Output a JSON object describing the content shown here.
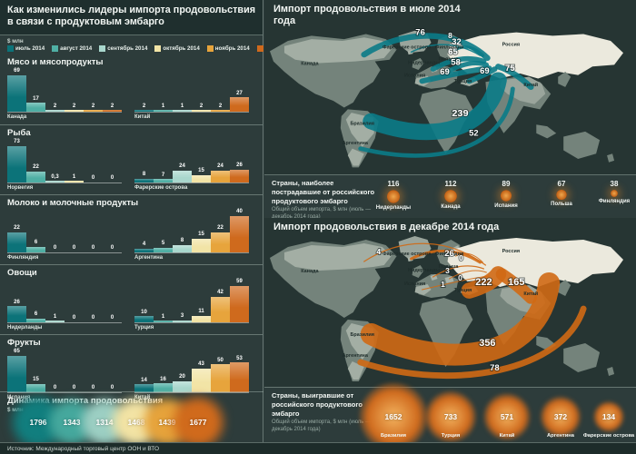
{
  "left": {
    "title": "Как изменились лидеры импорта продовольствия в связи с продуктовым эмбарго",
    "unit": "$ млн",
    "legend": [
      {
        "label": "июль 2014",
        "color": "#0c7379"
      },
      {
        "label": "август 2014",
        "color": "#4fafa4"
      },
      {
        "label": "сентябрь 2014",
        "color": "#a9d7cd"
      },
      {
        "label": "октябрь 2014",
        "color": "#f2e4a6"
      },
      {
        "label": "ноябрь 2014",
        "color": "#e7a43c"
      },
      {
        "label": "декабрь 2014",
        "color": "#cf6a1d"
      }
    ],
    "charts": [
      {
        "title": "Мясо и мясопродукты",
        "groups": [
          {
            "country": "Канада",
            "labels": [
              "69",
              "17",
              "2",
              "2",
              "2",
              "2"
            ],
            "values": [
              69,
              17,
              2,
              2,
              2,
              2
            ]
          },
          {
            "country": "Китай",
            "labels": [
              "2",
              "1",
              "1",
              "2",
              "2",
              "27"
            ],
            "values": [
              2,
              1,
              1,
              2,
              2,
              27
            ]
          }
        ]
      },
      {
        "title": "Рыба",
        "groups": [
          {
            "country": "Норвегия",
            "labels": [
              "73",
              "22",
              "0,3",
              "1",
              "0",
              "0"
            ],
            "values": [
              73,
              22,
              0.3,
              1,
              0,
              0
            ]
          },
          {
            "country": "Фарерские острова",
            "labels": [
              "8",
              "7",
              "24",
              "15",
              "24",
              "26"
            ],
            "values": [
              8,
              7,
              24,
              15,
              24,
              26
            ]
          }
        ]
      },
      {
        "title": "Молоко и молочные продукты",
        "groups": [
          {
            "country": "Финляндия",
            "labels": [
              "22",
              "6",
              "0",
              "0",
              "0",
              "0"
            ],
            "values": [
              22,
              6,
              0,
              0,
              0,
              0
            ]
          },
          {
            "country": "Аргентина",
            "labels": [
              "4",
              "5",
              "8",
              "15",
              "22",
              "40"
            ],
            "values": [
              4,
              5,
              8,
              15,
              22,
              40
            ]
          }
        ]
      },
      {
        "title": "Овощи",
        "groups": [
          {
            "country": "Нидерланды",
            "labels": [
              "26",
              "6",
              "1",
              "0",
              "0",
              "0"
            ],
            "values": [
              26,
              6,
              1,
              0,
              0,
              0
            ]
          },
          {
            "country": "Турция",
            "labels": [
              "10",
              "1",
              "3",
              "11",
              "42",
              "59"
            ],
            "values": [
              10,
              1,
              3,
              11,
              42,
              59
            ]
          }
        ]
      },
      {
        "title": "Фрукты",
        "groups": [
          {
            "country": "Испания",
            "labels": [
              "65",
              "15",
              "0",
              "0",
              "0",
              "0"
            ],
            "values": [
              65,
              15,
              0,
              0,
              0,
              0
            ]
          },
          {
            "country": "Китай",
            "labels": [
              "14",
              "16",
              "20",
              "43",
              "50",
              "53"
            ],
            "values": [
              14,
              16,
              20,
              43,
              50,
              53
            ]
          }
        ]
      }
    ],
    "dynamics": {
      "title": "Динамика импорта продовольствия",
      "unit": "$ млн",
      "points": [
        {
          "value": "1796",
          "color": "#117e7e"
        },
        {
          "value": "1343",
          "color": "#45a89d"
        },
        {
          "value": "1314",
          "color": "#9ccfc3"
        },
        {
          "value": "1468",
          "color": "#f2e3a4"
        },
        {
          "value": "1439",
          "color": "#e6a33b"
        },
        {
          "value": "1677",
          "color": "#d06a1c"
        }
      ]
    }
  },
  "maps": {
    "labels": [
      "Канада",
      "Россия",
      "Фарерские острова",
      "Финляндия",
      "Нидерланды",
      "Польша",
      "Испания",
      "Турция",
      "Китай",
      "Бразилия",
      "Аргентина"
    ],
    "july": {
      "title": "Импорт продовольствия в июле 2014 года",
      "color": "#0b7b87",
      "flows": [
        {
          "country": "Канада",
          "value": "76"
        },
        {
          "country": "Фарерские острова",
          "value": "8"
        },
        {
          "country": "Финляндия",
          "value": "32"
        },
        {
          "country": "Нидерланды",
          "value": "65"
        },
        {
          "country": "Польша",
          "value": "58"
        },
        {
          "country": "Испания",
          "value": "69"
        },
        {
          "country": "Турция",
          "value": "69"
        },
        {
          "country": "Китай",
          "value": "75"
        },
        {
          "country": "Бразилия",
          "value": "239"
        },
        {
          "country": "Аргентина",
          "value": "52"
        }
      ]
    },
    "december": {
      "title": "Импорт продовольствия в декабре 2014 года",
      "color": "#d06914",
      "flows": [
        {
          "country": "Канада",
          "value": "4"
        },
        {
          "country": "Фарерские острова",
          "value": "26"
        },
        {
          "country": "Финляндия",
          "value": "0"
        },
        {
          "country": "Нидерланды",
          "value": "3"
        },
        {
          "country": "Польша",
          "value": "0"
        },
        {
          "country": "Испания",
          "value": "1"
        },
        {
          "country": "Турция",
          "value": "222"
        },
        {
          "country": "Китай",
          "value": "165"
        },
        {
          "country": "Бразилия",
          "value": "356"
        },
        {
          "country": "Аргентина",
          "value": "78"
        }
      ]
    }
  },
  "affected": {
    "title": "Страны, наиболее пострадавшие от российского продуктового эмбарго",
    "subtitle": "Общий объем импорта, $ млн (июль — декабрь 2014 года)",
    "items": [
      {
        "country": "Нидерланды",
        "value": "116"
      },
      {
        "country": "Канада",
        "value": "112"
      },
      {
        "country": "Испания",
        "value": "89"
      },
      {
        "country": "Польша",
        "value": "67"
      },
      {
        "country": "Финляндия",
        "value": "38"
      }
    ]
  },
  "winners": {
    "title": "Страны, выигравшие от российского продуктового эмбарго",
    "subtitle": "Общий объем импорта, $ млн (июль — декабрь 2014 года)",
    "items": [
      {
        "country": "Бразилия",
        "value": "1652"
      },
      {
        "country": "Турция",
        "value": "733"
      },
      {
        "country": "Китай",
        "value": "571"
      },
      {
        "country": "Аргентина",
        "value": "372"
      },
      {
        "country": "Фарерские острова",
        "value": "134"
      }
    ]
  },
  "source": "Источник: Международный торговый центр ООН и ВТО",
  "chart_data": [
    {
      "type": "bar",
      "title": "Мясо и мясопродукты ($ млн)",
      "categories": [
        "июль 2014",
        "август 2014",
        "сентябрь 2014",
        "октябрь 2014",
        "ноябрь 2014",
        "декабрь 2014"
      ],
      "series": [
        {
          "name": "Канада",
          "values": [
            69,
            17,
            2,
            2,
            2,
            2
          ]
        },
        {
          "name": "Китай",
          "values": [
            2,
            1,
            1,
            2,
            2,
            27
          ]
        }
      ]
    },
    {
      "type": "bar",
      "title": "Рыба ($ млн)",
      "categories": [
        "июль 2014",
        "август 2014",
        "сентябрь 2014",
        "октябрь 2014",
        "ноябрь 2014",
        "декабрь 2014"
      ],
      "series": [
        {
          "name": "Норвегия",
          "values": [
            73,
            22,
            0.3,
            1,
            0,
            0
          ]
        },
        {
          "name": "Фарерские острова",
          "values": [
            8,
            7,
            24,
            15,
            24,
            26
          ]
        }
      ]
    },
    {
      "type": "bar",
      "title": "Молоко и молочные продукты ($ млн)",
      "categories": [
        "июль 2014",
        "август 2014",
        "сентябрь 2014",
        "октябрь 2014",
        "ноябрь 2014",
        "декабрь 2014"
      ],
      "series": [
        {
          "name": "Финляндия",
          "values": [
            22,
            6,
            0,
            0,
            0,
            0
          ]
        },
        {
          "name": "Аргентина",
          "values": [
            4,
            5,
            8,
            15,
            22,
            40
          ]
        }
      ]
    },
    {
      "type": "bar",
      "title": "Овощи ($ млн)",
      "categories": [
        "июль 2014",
        "август 2014",
        "сентябрь 2014",
        "октябрь 2014",
        "ноябрь 2014",
        "декабрь 2014"
      ],
      "series": [
        {
          "name": "Нидерланды",
          "values": [
            26,
            6,
            1,
            0,
            0,
            0
          ]
        },
        {
          "name": "Турция",
          "values": [
            10,
            1,
            3,
            11,
            42,
            59
          ]
        }
      ]
    },
    {
      "type": "bar",
      "title": "Фрукты ($ млн)",
      "categories": [
        "июль 2014",
        "август 2014",
        "сентябрь 2014",
        "октябрь 2014",
        "ноябрь 2014",
        "декабрь 2014"
      ],
      "series": [
        {
          "name": "Испания",
          "values": [
            65,
            15,
            0,
            0,
            0,
            0
          ]
        },
        {
          "name": "Китай",
          "values": [
            14,
            16,
            20,
            43,
            50,
            53
          ]
        }
      ]
    },
    {
      "type": "area",
      "title": "Динамика импорта продовольствия ($ млн)",
      "categories": [
        "июль 2014",
        "август 2014",
        "сентябрь 2014",
        "октябрь 2014",
        "ноябрь 2014",
        "декабрь 2014"
      ],
      "values": [
        1796,
        1343,
        1314,
        1468,
        1439,
        1677
      ]
    },
    {
      "type": "heatmap",
      "title": "Импорт продовольствия в июле 2014 года ($ млн)",
      "categories": [
        "Канада",
        "Фарерские острова",
        "Финляндия",
        "Нидерланды",
        "Польша",
        "Испания",
        "Турция",
        "Китай",
        "Бразилия",
        "Аргентина"
      ],
      "values": [
        76,
        8,
        32,
        65,
        58,
        69,
        69,
        75,
        239,
        52
      ]
    },
    {
      "type": "heatmap",
      "title": "Импорт продовольствия в декабре 2014 года ($ млн)",
      "categories": [
        "Канада",
        "Фарерские острова",
        "Финляндия",
        "Нидерланды",
        "Польша",
        "Испания",
        "Турция",
        "Китай",
        "Бразилия",
        "Аргентина"
      ],
      "values": [
        4,
        26,
        0,
        3,
        0,
        1,
        222,
        165,
        356,
        78
      ]
    },
    {
      "type": "bar",
      "title": "Страны, наиболее пострадавшие от российского продуктового эмбарго, июль–декабрь 2014 ($ млн)",
      "categories": [
        "Нидерланды",
        "Канада",
        "Испания",
        "Польша",
        "Финляндия"
      ],
      "values": [
        116,
        112,
        89,
        67,
        38
      ]
    },
    {
      "type": "bar",
      "title": "Страны, выигравшие от российского продуктового эмбарго, июль–декабрь 2014 ($ млн)",
      "categories": [
        "Бразилия",
        "Турция",
        "Китай",
        "Аргентина",
        "Фарерские острова"
      ],
      "values": [
        1652,
        733,
        571,
        372,
        134
      ]
    }
  ]
}
